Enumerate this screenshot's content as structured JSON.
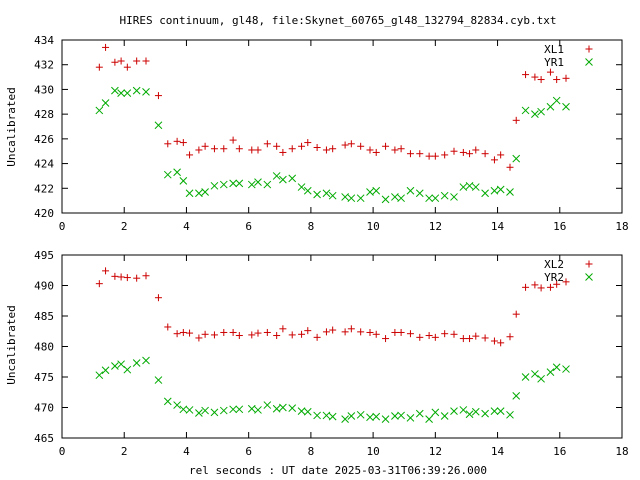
{
  "title": "HIRES continuum, gl48, file:Skynet_60765_gl48_132794_82834.cyb.txt",
  "xlabel": "rel seconds : UT date 2025-03-31T06:39:26.000",
  "colors": {
    "plus": "#cc0000",
    "cross": "#00aa00"
  },
  "chart_data": [
    {
      "type": "scatter",
      "ylabel": "Uncalibrated",
      "xlim": [
        0,
        18
      ],
      "ylim": [
        420,
        434
      ],
      "xticks": [
        0,
        2,
        4,
        6,
        8,
        10,
        12,
        14,
        16,
        18
      ],
      "yticks": [
        420,
        422,
        424,
        426,
        428,
        430,
        432,
        434
      ],
      "legend_position": "top-right",
      "series": [
        {
          "name": "XL1",
          "marker": "plus",
          "color": "#cc0000",
          "points": [
            [
              1.2,
              431.8
            ],
            [
              1.4,
              433.4
            ],
            [
              1.7,
              432.2
            ],
            [
              1.9,
              432.3
            ],
            [
              2.1,
              431.8
            ],
            [
              2.4,
              432.3
            ],
            [
              2.7,
              432.3
            ],
            [
              3.1,
              429.5
            ],
            [
              3.4,
              425.6
            ],
            [
              3.7,
              425.8
            ],
            [
              3.9,
              425.7
            ],
            [
              4.1,
              424.7
            ],
            [
              4.4,
              425.1
            ],
            [
              4.6,
              425.4
            ],
            [
              4.9,
              425.2
            ],
            [
              5.2,
              425.2
            ],
            [
              5.5,
              425.9
            ],
            [
              5.7,
              425.2
            ],
            [
              6.1,
              425.1
            ],
            [
              6.3,
              425.1
            ],
            [
              6.6,
              425.6
            ],
            [
              6.9,
              425.4
            ],
            [
              7.1,
              424.9
            ],
            [
              7.4,
              425.2
            ],
            [
              7.7,
              425.4
            ],
            [
              7.9,
              425.7
            ],
            [
              8.2,
              425.3
            ],
            [
              8.5,
              425.1
            ],
            [
              8.7,
              425.2
            ],
            [
              9.1,
              425.5
            ],
            [
              9.3,
              425.6
            ],
            [
              9.6,
              425.4
            ],
            [
              9.9,
              425.1
            ],
            [
              10.1,
              424.9
            ],
            [
              10.4,
              425.4
            ],
            [
              10.7,
              425.1
            ],
            [
              10.9,
              425.2
            ],
            [
              11.2,
              424.8
            ],
            [
              11.5,
              424.8
            ],
            [
              11.8,
              424.6
            ],
            [
              12.0,
              424.6
            ],
            [
              12.3,
              424.7
            ],
            [
              12.6,
              425.0
            ],
            [
              12.9,
              424.9
            ],
            [
              13.1,
              424.8
            ],
            [
              13.3,
              425.1
            ],
            [
              13.6,
              424.8
            ],
            [
              13.9,
              424.3
            ],
            [
              14.1,
              424.7
            ],
            [
              14.4,
              423.7
            ],
            [
              14.6,
              427.5
            ],
            [
              14.9,
              431.2
            ],
            [
              15.2,
              431.0
            ],
            [
              15.4,
              430.8
            ],
            [
              15.7,
              431.4
            ],
            [
              15.9,
              430.8
            ],
            [
              16.2,
              430.9
            ]
          ]
        },
        {
          "name": "YR1",
          "marker": "cross",
          "color": "#00aa00",
          "points": [
            [
              1.2,
              428.3
            ],
            [
              1.4,
              428.9
            ],
            [
              1.7,
              429.9
            ],
            [
              1.9,
              429.7
            ],
            [
              2.1,
              429.7
            ],
            [
              2.4,
              429.9
            ],
            [
              2.7,
              429.8
            ],
            [
              3.1,
              427.1
            ],
            [
              3.4,
              423.1
            ],
            [
              3.7,
              423.3
            ],
            [
              3.9,
              422.6
            ],
            [
              4.1,
              421.6
            ],
            [
              4.4,
              421.6
            ],
            [
              4.6,
              421.7
            ],
            [
              4.9,
              422.2
            ],
            [
              5.2,
              422.3
            ],
            [
              5.5,
              422.4
            ],
            [
              5.7,
              422.4
            ],
            [
              6.1,
              422.3
            ],
            [
              6.3,
              422.5
            ],
            [
              6.6,
              422.3
            ],
            [
              6.9,
              423.0
            ],
            [
              7.1,
              422.7
            ],
            [
              7.4,
              422.8
            ],
            [
              7.7,
              422.1
            ],
            [
              7.9,
              421.8
            ],
            [
              8.2,
              421.5
            ],
            [
              8.5,
              421.6
            ],
            [
              8.7,
              421.4
            ],
            [
              9.1,
              421.3
            ],
            [
              9.3,
              421.2
            ],
            [
              9.6,
              421.2
            ],
            [
              9.9,
              421.7
            ],
            [
              10.1,
              421.8
            ],
            [
              10.4,
              421.1
            ],
            [
              10.7,
              421.3
            ],
            [
              10.9,
              421.2
            ],
            [
              11.2,
              421.8
            ],
            [
              11.5,
              421.6
            ],
            [
              11.8,
              421.2
            ],
            [
              12.0,
              421.2
            ],
            [
              12.3,
              421.4
            ],
            [
              12.6,
              421.3
            ],
            [
              12.9,
              422.1
            ],
            [
              13.1,
              422.2
            ],
            [
              13.3,
              422.1
            ],
            [
              13.6,
              421.6
            ],
            [
              13.9,
              421.8
            ],
            [
              14.1,
              421.9
            ],
            [
              14.4,
              421.7
            ],
            [
              14.6,
              424.4
            ],
            [
              14.9,
              428.3
            ],
            [
              15.2,
              428.0
            ],
            [
              15.4,
              428.2
            ],
            [
              15.7,
              428.6
            ],
            [
              15.9,
              429.1
            ],
            [
              16.2,
              428.6
            ]
          ]
        }
      ]
    },
    {
      "type": "scatter",
      "ylabel": "Uncalibrated",
      "xlim": [
        0,
        18
      ],
      "ylim": [
        465,
        495
      ],
      "xticks": [
        0,
        2,
        4,
        6,
        8,
        10,
        12,
        14,
        16,
        18
      ],
      "yticks": [
        465,
        470,
        475,
        480,
        485,
        490,
        495
      ],
      "legend_position": "top-right",
      "series": [
        {
          "name": "XL2",
          "marker": "plus",
          "color": "#cc0000",
          "points": [
            [
              1.2,
              490.3
            ],
            [
              1.4,
              492.4
            ],
            [
              1.7,
              491.5
            ],
            [
              1.9,
              491.4
            ],
            [
              2.1,
              491.3
            ],
            [
              2.4,
              491.2
            ],
            [
              2.7,
              491.6
            ],
            [
              3.1,
              488.0
            ],
            [
              3.4,
              483.2
            ],
            [
              3.7,
              482.1
            ],
            [
              3.9,
              482.3
            ],
            [
              4.1,
              482.2
            ],
            [
              4.4,
              481.4
            ],
            [
              4.6,
              482.0
            ],
            [
              4.9,
              481.9
            ],
            [
              5.2,
              482.3
            ],
            [
              5.5,
              482.3
            ],
            [
              5.7,
              481.8
            ],
            [
              6.1,
              481.9
            ],
            [
              6.3,
              482.2
            ],
            [
              6.6,
              482.3
            ],
            [
              6.9,
              481.8
            ],
            [
              7.1,
              482.9
            ],
            [
              7.4,
              481.9
            ],
            [
              7.7,
              482.0
            ],
            [
              7.9,
              482.6
            ],
            [
              8.2,
              481.5
            ],
            [
              8.5,
              482.4
            ],
            [
              8.7,
              482.7
            ],
            [
              9.1,
              482.4
            ],
            [
              9.3,
              482.9
            ],
            [
              9.6,
              482.4
            ],
            [
              9.9,
              482.3
            ],
            [
              10.1,
              482.0
            ],
            [
              10.4,
              481.3
            ],
            [
              10.7,
              482.3
            ],
            [
              10.9,
              482.3
            ],
            [
              11.2,
              482.1
            ],
            [
              11.5,
              481.5
            ],
            [
              11.8,
              481.8
            ],
            [
              12.0,
              481.5
            ],
            [
              12.3,
              482.1
            ],
            [
              12.6,
              482.0
            ],
            [
              12.9,
              481.3
            ],
            [
              13.1,
              481.3
            ],
            [
              13.3,
              481.7
            ],
            [
              13.6,
              481.4
            ],
            [
              13.9,
              480.9
            ],
            [
              14.1,
              480.6
            ],
            [
              14.4,
              481.6
            ],
            [
              14.6,
              485.3
            ],
            [
              14.9,
              489.7
            ],
            [
              15.2,
              490.1
            ],
            [
              15.4,
              489.6
            ],
            [
              15.7,
              489.7
            ],
            [
              15.9,
              490.2
            ],
            [
              16.2,
              490.6
            ]
          ]
        },
        {
          "name": "YR2",
          "marker": "cross",
          "color": "#00aa00",
          "points": [
            [
              1.2,
              475.3
            ],
            [
              1.4,
              476.1
            ],
            [
              1.7,
              476.8
            ],
            [
              1.9,
              477.1
            ],
            [
              2.1,
              476.2
            ],
            [
              2.4,
              477.3
            ],
            [
              2.7,
              477.7
            ],
            [
              3.1,
              474.5
            ],
            [
              3.4,
              471.0
            ],
            [
              3.7,
              470.4
            ],
            [
              3.9,
              469.7
            ],
            [
              4.1,
              469.6
            ],
            [
              4.4,
              469.1
            ],
            [
              4.6,
              469.5
            ],
            [
              4.9,
              469.2
            ],
            [
              5.2,
              469.5
            ],
            [
              5.5,
              469.7
            ],
            [
              5.7,
              469.7
            ],
            [
              6.1,
              469.8
            ],
            [
              6.3,
              469.6
            ],
            [
              6.6,
              470.4
            ],
            [
              6.9,
              469.8
            ],
            [
              7.1,
              470.0
            ],
            [
              7.4,
              469.9
            ],
            [
              7.7,
              469.4
            ],
            [
              7.9,
              469.3
            ],
            [
              8.2,
              468.7
            ],
            [
              8.5,
              468.7
            ],
            [
              8.7,
              468.5
            ],
            [
              9.1,
              468.1
            ],
            [
              9.3,
              468.6
            ],
            [
              9.6,
              468.8
            ],
            [
              9.9,
              468.4
            ],
            [
              10.1,
              468.5
            ],
            [
              10.4,
              468.1
            ],
            [
              10.7,
              468.6
            ],
            [
              10.9,
              468.7
            ],
            [
              11.2,
              468.3
            ],
            [
              11.5,
              469.0
            ],
            [
              11.8,
              468.1
            ],
            [
              12.0,
              469.2
            ],
            [
              12.3,
              468.6
            ],
            [
              12.6,
              469.4
            ],
            [
              12.9,
              469.6
            ],
            [
              13.1,
              468.9
            ],
            [
              13.3,
              469.3
            ],
            [
              13.6,
              469.0
            ],
            [
              13.9,
              469.4
            ],
            [
              14.1,
              469.4
            ],
            [
              14.4,
              468.8
            ],
            [
              14.6,
              471.9
            ],
            [
              14.9,
              475.0
            ],
            [
              15.2,
              475.5
            ],
            [
              15.4,
              474.7
            ],
            [
              15.7,
              475.8
            ],
            [
              15.9,
              476.6
            ],
            [
              16.2,
              476.3
            ]
          ]
        }
      ]
    }
  ]
}
